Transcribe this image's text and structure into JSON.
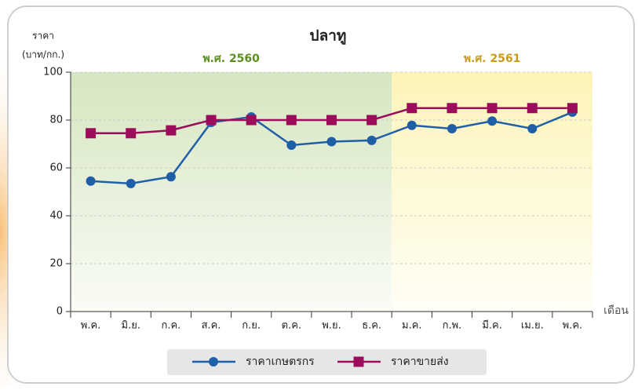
{
  "chart_data": {
    "type": "line",
    "title": "ปลาทู",
    "ylabel": "ราคา",
    "yunit": "(บาท/กก.)",
    "xlabel": "เดือน",
    "categories": [
      "พ.ค.",
      "มิ.ย.",
      "ก.ค.",
      "ส.ค.",
      "ก.ย.",
      "ต.ค.",
      "พ.ย.",
      "ธ.ค.",
      "ม.ค.",
      "ก.พ.",
      "มี.ค.",
      "เม.ย.",
      "พ.ค."
    ],
    "periods": [
      {
        "label": "พ.ศ. 2560",
        "color": "#5c8f1f",
        "from": 0,
        "to": 7
      },
      {
        "label": "พ.ศ. 2561",
        "color": "#c99a1a",
        "from": 8,
        "to": 12
      }
    ],
    "series": [
      {
        "name": "ราคาเกษตรกร",
        "color": "#1f5fa8",
        "marker": "circle",
        "values": [
          54.5,
          53.5,
          56.3,
          79,
          81.3,
          69.5,
          71,
          71.5,
          77.8,
          76.4,
          79.6,
          76.4,
          83.3
        ]
      },
      {
        "name": "ราคาขายส่ง",
        "color": "#9b0d5a",
        "marker": "square",
        "values": [
          74.5,
          74.5,
          75.7,
          80,
          80,
          80,
          80,
          80,
          85,
          85,
          85,
          85,
          85
        ]
      }
    ],
    "ylim": [
      0,
      100
    ],
    "yticks": [
      0,
      20,
      40,
      60,
      80,
      100
    ],
    "grid": true
  }
}
